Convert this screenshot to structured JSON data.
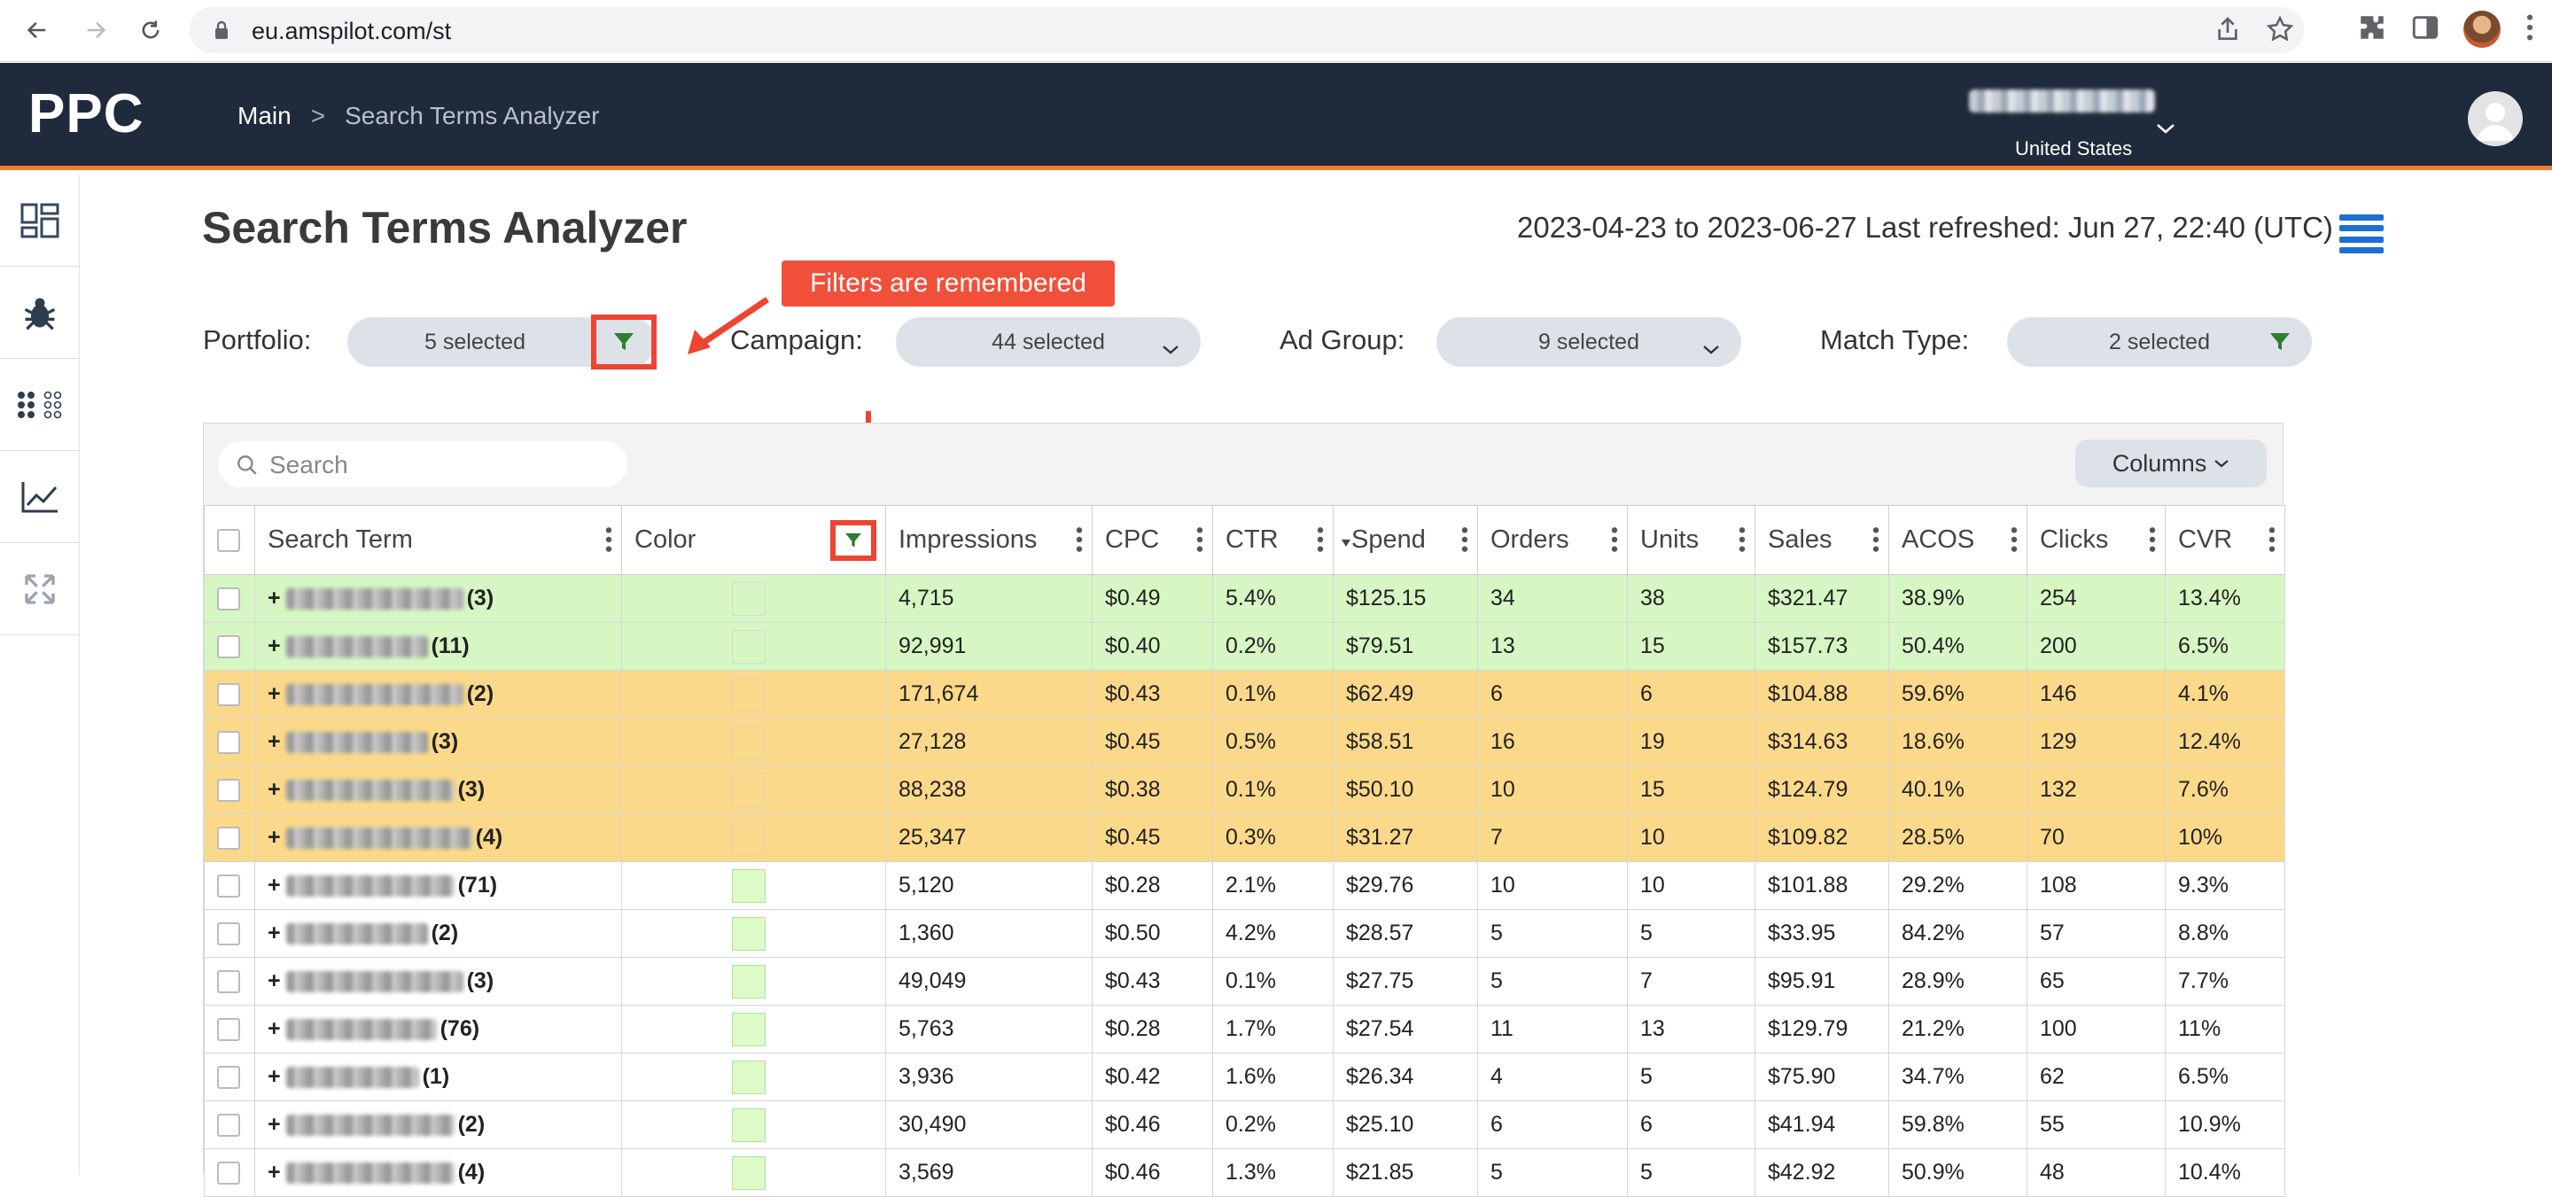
{
  "browser": {
    "url": "eu.amspilot.com/st"
  },
  "header": {
    "logo": "PPC",
    "breadcrumb": {
      "main": "Main",
      "separator": ">",
      "current": "Search Terms Analyzer"
    },
    "account": {
      "country": "United States"
    }
  },
  "page": {
    "title": "Search Terms Analyzer",
    "date_range": "2023-04-23 to 2023-06-27",
    "last_refreshed": "Last refreshed: Jun 27, 22:40 (UTC)"
  },
  "annotation": {
    "text": "Filters are remembered"
  },
  "filters": {
    "portfolio": {
      "label": "Portfolio:",
      "value": "5 selected"
    },
    "campaign": {
      "label": "Campaign:",
      "value": "44 selected"
    },
    "ad_group": {
      "label": "Ad Group:",
      "value": "9 selected"
    },
    "match_type": {
      "label": "Match Type:",
      "value": "2 selected"
    }
  },
  "table_toolbar": {
    "search_placeholder": "Search",
    "columns_label": "Columns"
  },
  "table": {
    "columns": [
      "Search Term",
      "Color",
      "Impressions",
      "CPC",
      "CTR",
      "Spend",
      "Orders",
      "Units",
      "Sales",
      "ACOS",
      "Clicks",
      "CVR"
    ],
    "rows": [
      {
        "tone": "green",
        "suffix": "(3)",
        "impressions": "4,715",
        "cpc": "$0.49",
        "ctr": "5.4%",
        "spend": "$125.15",
        "orders": "34",
        "units": "38",
        "sales": "$321.47",
        "acos": "38.9%",
        "clicks": "254",
        "cvr": "13.4%"
      },
      {
        "tone": "green",
        "suffix": "(11)",
        "impressions": "92,991",
        "cpc": "$0.40",
        "ctr": "0.2%",
        "spend": "$79.51",
        "orders": "13",
        "units": "15",
        "sales": "$157.73",
        "acos": "50.4%",
        "clicks": "200",
        "cvr": "6.5%"
      },
      {
        "tone": "orange",
        "suffix": "(2)",
        "impressions": "171,674",
        "cpc": "$0.43",
        "ctr": "0.1%",
        "spend": "$62.49",
        "orders": "6",
        "units": "6",
        "sales": "$104.88",
        "acos": "59.6%",
        "clicks": "146",
        "cvr": "4.1%"
      },
      {
        "tone": "orange",
        "suffix": "(3)",
        "impressions": "27,128",
        "cpc": "$0.45",
        "ctr": "0.5%",
        "spend": "$58.51",
        "orders": "16",
        "units": "19",
        "sales": "$314.63",
        "acos": "18.6%",
        "clicks": "129",
        "cvr": "12.4%"
      },
      {
        "tone": "orange",
        "suffix": "(3)",
        "impressions": "88,238",
        "cpc": "$0.38",
        "ctr": "0.1%",
        "spend": "$50.10",
        "orders": "10",
        "units": "15",
        "sales": "$124.79",
        "acos": "40.1%",
        "clicks": "132",
        "cvr": "7.6%"
      },
      {
        "tone": "orange",
        "suffix": "(4)",
        "impressions": "25,347",
        "cpc": "$0.45",
        "ctr": "0.3%",
        "spend": "$31.27",
        "orders": "7",
        "units": "10",
        "sales": "$109.82",
        "acos": "28.5%",
        "clicks": "70",
        "cvr": "10%"
      },
      {
        "tone": "white",
        "suffix": "(71)",
        "impressions": "5,120",
        "cpc": "$0.28",
        "ctr": "2.1%",
        "spend": "$29.76",
        "orders": "10",
        "units": "10",
        "sales": "$101.88",
        "acos": "29.2%",
        "clicks": "108",
        "cvr": "9.3%"
      },
      {
        "tone": "white",
        "suffix": "(2)",
        "impressions": "1,360",
        "cpc": "$0.50",
        "ctr": "4.2%",
        "spend": "$28.57",
        "orders": "5",
        "units": "5",
        "sales": "$33.95",
        "acos": "84.2%",
        "clicks": "57",
        "cvr": "8.8%"
      },
      {
        "tone": "white",
        "suffix": "(3)",
        "impressions": "49,049",
        "cpc": "$0.43",
        "ctr": "0.1%",
        "spend": "$27.75",
        "orders": "5",
        "units": "7",
        "sales": "$95.91",
        "acos": "28.9%",
        "clicks": "65",
        "cvr": "7.7%"
      },
      {
        "tone": "white",
        "suffix": "(76)",
        "impressions": "5,763",
        "cpc": "$0.28",
        "ctr": "1.7%",
        "spend": "$27.54",
        "orders": "11",
        "units": "13",
        "sales": "$129.79",
        "acos": "21.2%",
        "clicks": "100",
        "cvr": "11%"
      },
      {
        "tone": "white",
        "suffix": "(1)",
        "impressions": "3,936",
        "cpc": "$0.42",
        "ctr": "1.6%",
        "spend": "$26.34",
        "orders": "4",
        "units": "5",
        "sales": "$75.90",
        "acos": "34.7%",
        "clicks": "62",
        "cvr": "6.5%"
      },
      {
        "tone": "white",
        "suffix": "(2)",
        "impressions": "30,490",
        "cpc": "$0.46",
        "ctr": "0.2%",
        "spend": "$25.10",
        "orders": "6",
        "units": "6",
        "sales": "$41.94",
        "acos": "59.8%",
        "clicks": "55",
        "cvr": "10.9%"
      },
      {
        "tone": "white",
        "suffix": "(4)",
        "impressions": "3,569",
        "cpc": "$0.46",
        "ctr": "1.3%",
        "spend": "$21.85",
        "orders": "5",
        "units": "5",
        "sales": "$42.92",
        "acos": "50.9%",
        "clicks": "48",
        "cvr": "10.4%"
      }
    ]
  },
  "colors": {
    "header_bg": "#1f2a3c",
    "accent_orange": "#f07c2b",
    "row_green": "#d6f6c3",
    "row_orange": "#fbd98a",
    "annotation_red": "#ee4431",
    "filter_icon_green": "#2e7d32",
    "menu_blue": "#1d6fd0"
  }
}
